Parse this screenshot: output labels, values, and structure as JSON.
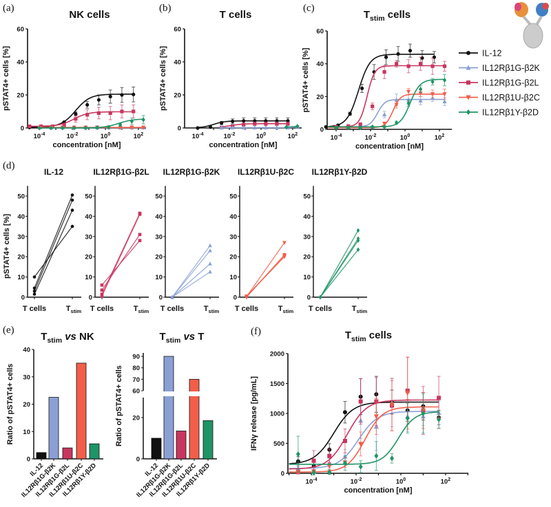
{
  "labels": {
    "a": "(a)",
    "b": "(b)",
    "c": "(c)",
    "d": "(d)",
    "e": "(e)",
    "f": "(f)"
  },
  "titles": {
    "a": "NK cells",
    "b": "T cells",
    "c": {
      "main": "T",
      "sub": "stim",
      "rest": " cells"
    },
    "e_left": {
      "main": "T",
      "sub": "stim",
      "mid": " vs",
      "rest": " NK"
    },
    "e_right": {
      "main": "T",
      "sub": "stim",
      "mid": " vs",
      "rest": " T"
    },
    "f": {
      "main": "T",
      "sub": "stim",
      "rest": " cells"
    }
  },
  "colors": {
    "IL-12": "#111111",
    "IL12Rβ1G-β2K": "#8aa0d4",
    "IL12Rβ1G-β2L": "#c8365f",
    "IL12Rβ1U-β2C": "#f25e4a",
    "IL12Rβ1Y-β2D": "#1f9466"
  },
  "markers": {
    "IL-12": "circle",
    "IL12Rβ1G-β2K": "triangle-up",
    "IL12Rβ1G-β2L": "square",
    "IL12Rβ1U-β2C": "triangle-down",
    "IL12Rβ1Y-β2D": "diamond"
  },
  "legend": [
    "IL-12",
    "IL12Rβ1G-β2K",
    "IL12Rβ1G-β2L",
    "IL12Rβ1U-β2C",
    "IL12Rβ1Y-β2D"
  ],
  "chart_data": [
    {
      "id": "a",
      "type": "line",
      "title": "NK cells",
      "xlabel": "concentration [nM]",
      "ylabel": "pSTAT4+ cells [%]",
      "xscale": "log",
      "ylim": [
        0,
        60
      ],
      "yticks": [
        0,
        20,
        40,
        60
      ],
      "xticks": [
        0.0001,
        0.01,
        1,
        100
      ],
      "series": [
        {
          "name": "IL-12",
          "x": [
            2.56e-05,
            0.000128,
            0.00064,
            0.0032,
            0.016,
            0.08,
            0.4,
            2,
            10,
            50
          ],
          "y": [
            0.3,
            0.5,
            1,
            3.5,
            8.5,
            14,
            17,
            19,
            20,
            20.3
          ],
          "err": [
            0.3,
            0.3,
            0.5,
            0.6,
            1.2,
            2,
            3,
            4,
            4.5,
            4.5
          ],
          "fit": {
            "bottom": 0.5,
            "top": 20.5,
            "log_ec50": -1.8,
            "hill": 1
          }
        },
        {
          "name": "IL12Rβ1G-β2L",
          "x": [
            2.56e-05,
            0.000128,
            0.00064,
            0.0032,
            0.016,
            0.08,
            0.4,
            2,
            10,
            50
          ],
          "y": [
            1,
            1,
            1,
            1.5,
            5.5,
            8,
            9,
            9,
            10,
            10
          ],
          "err": [
            0.5,
            0.5,
            0.5,
            1,
            2,
            3,
            3.5,
            4,
            4,
            4
          ],
          "fit": {
            "bottom": 1,
            "top": 9.8,
            "log_ec50": -1.9,
            "hill": 1
          }
        },
        {
          "name": "IL12Rβ1G-β2K",
          "x": [
            0.0001024,
            0.000512,
            0.00256,
            0.0128,
            0.064,
            0.32,
            1.6,
            8,
            40,
            200
          ],
          "y": [
            0.2,
            0.2,
            0.2,
            0.2,
            0.2,
            0.2,
            0.2,
            0.2,
            0.2,
            0.2
          ],
          "err": [
            0.3,
            0.3,
            0.3,
            0.3,
            0.3,
            0.3,
            0.3,
            0.3,
            0.3,
            0.3
          ],
          "fit": {
            "bottom": 0.2,
            "top": 0.2,
            "log_ec50": 0,
            "hill": 1
          }
        },
        {
          "name": "IL12Rβ1U-β2C",
          "x": [
            0.0001024,
            0.000512,
            0.00256,
            0.0128,
            0.064,
            0.32,
            1.6,
            8,
            40,
            200
          ],
          "y": [
            0.3,
            0.3,
            0.3,
            0.3,
            0.3,
            0.3,
            0.3,
            0.3,
            0.3,
            0.3
          ],
          "err": [
            0.3,
            0.3,
            0.3,
            0.3,
            0.3,
            0.3,
            0.3,
            0.3,
            0.3,
            0.3
          ],
          "fit": {
            "bottom": 0.3,
            "top": 0.3,
            "log_ec50": 0,
            "hill": 1
          }
        },
        {
          "name": "IL12Rβ1Y-β2D",
          "x": [
            0.0001024,
            0.000512,
            0.00256,
            0.0128,
            0.064,
            0.32,
            1.6,
            8,
            40,
            200
          ],
          "y": [
            0,
            0,
            0,
            0,
            0,
            0.2,
            0.5,
            2,
            4,
            5
          ],
          "err": [
            0.2,
            0.2,
            0.2,
            0.2,
            0.2,
            0.3,
            0.5,
            1,
            2,
            2.5
          ],
          "fit": {
            "bottom": 0,
            "top": 5.5,
            "log_ec50": 0.8,
            "hill": 1
          }
        }
      ]
    },
    {
      "id": "b",
      "type": "line",
      "title": "T cells",
      "xlabel": "concentration [nM]",
      "ylabel": "pSTAT4+ cells [%]",
      "xscale": "log",
      "ylim": [
        0,
        60
      ],
      "yticks": [
        0,
        20,
        40,
        60
      ],
      "xticks": [
        0.0001,
        0.01,
        1,
        100
      ],
      "series": [
        {
          "name": "IL-12",
          "x": [
            0.0001,
            0.00064,
            0.0032,
            0.016,
            0.08,
            0.4,
            2,
            10,
            50
          ],
          "y": [
            0,
            0.5,
            3,
            4,
            4.3,
            4.3,
            4.3,
            4.3,
            4.3
          ],
          "err": [
            0.2,
            0.3,
            1,
            1.5,
            1.8,
            1.8,
            1.8,
            1.8,
            1.8
          ],
          "fit": {
            "bottom": 0,
            "top": 4.3,
            "log_ec50": -3,
            "hill": 1.2
          }
        },
        {
          "name": "IL12Rβ1G-β2L",
          "x": [
            0.0032,
            0.016,
            0.08,
            0.4,
            2,
            10,
            50
          ],
          "y": [
            0.2,
            1,
            2,
            2.5,
            2.5,
            2.5,
            2.5
          ],
          "err": [
            0.3,
            0.8,
            1,
            1,
            1,
            1,
            1
          ],
          "fit": {
            "bottom": 0,
            "top": 2.6,
            "log_ec50": -2,
            "hill": 1
          }
        },
        {
          "name": "IL12Rβ1G-β2K",
          "x": [
            0.0032,
            0.016,
            0.08,
            0.4,
            2,
            10,
            50,
            200
          ],
          "y": [
            0.2,
            0.2,
            0.2,
            0.2,
            0.2,
            0.2,
            0.2,
            0.5
          ],
          "err": [
            0.2,
            0.2,
            0.2,
            0.2,
            0.2,
            0.2,
            0.2,
            0.3
          ],
          "fit": null
        },
        {
          "name": "IL12Rβ1Y-β2D",
          "x": [
            40,
            200
          ],
          "y": [
            0.5,
            1
          ],
          "err": [
            0.3,
            0.4
          ],
          "fit": null
        }
      ]
    },
    {
      "id": "c",
      "type": "line",
      "title": "Tstim cells",
      "xlabel": "concentration [nM]",
      "ylabel": "pSTAT4+ cells [%]",
      "xscale": "log",
      "ylim": [
        0,
        60
      ],
      "yticks": [
        0,
        20,
        40,
        60
      ],
      "xticks": [
        0.0001,
        0.01,
        1,
        100
      ],
      "series": [
        {
          "name": "IL-12",
          "x": [
            2.56e-05,
            0.000128,
            0.00064,
            0.0032,
            0.016,
            0.08,
            0.4,
            2,
            10,
            50
          ],
          "y": [
            1.5,
            2.5,
            9.5,
            25,
            35,
            44,
            46,
            48,
            43.5,
            44
          ],
          "err": [
            0.5,
            0.5,
            1,
            2.5,
            4.5,
            4.5,
            4.5,
            4,
            4.5,
            3.5
          ],
          "fit": {
            "bottom": 1.5,
            "top": 45.8,
            "log_ec50": -2.7,
            "hill": 1.3
          }
        },
        {
          "name": "IL12Rβ1G-β2K",
          "x": [
            0.0001024,
            0.000512,
            0.00256,
            0.0128,
            0.064,
            0.32,
            1.6,
            8,
            40,
            200
          ],
          "y": [
            1.5,
            1.5,
            1.5,
            1.5,
            9,
            18,
            18,
            17.5,
            19,
            17
          ],
          "err": [
            0.5,
            0.5,
            0.5,
            0.5,
            2,
            3.5,
            3,
            2.5,
            2,
            2.5
          ],
          "fit": {
            "bottom": 1.5,
            "top": 18.2,
            "log_ec50": -1.6,
            "hill": 2
          }
        },
        {
          "name": "IL12Rβ1G-β2L",
          "x": [
            0.0001024,
            0.000512,
            0.00256,
            0.0128,
            0.064,
            0.32,
            1.6,
            8,
            40,
            200
          ],
          "y": [
            1.5,
            2,
            3,
            14,
            35,
            40,
            38.5,
            40,
            38.5,
            38.5
          ],
          "err": [
            0.5,
            0.5,
            1,
            2,
            4,
            2,
            4,
            4,
            5,
            3
          ],
          "fit": {
            "bottom": 1.5,
            "top": 38.8,
            "log_ec50": -2.2,
            "hill": 2
          }
        },
        {
          "name": "IL12Rβ1U-β2C",
          "x": [
            0.064,
            0.32,
            1.6,
            8,
            40,
            200
          ],
          "y": [
            3.5,
            15,
            23,
            22,
            21.5,
            21.5
          ],
          "err": [
            1,
            2,
            2,
            2,
            2.5,
            3
          ],
          "fit": {
            "bottom": 1,
            "top": 21.5,
            "log_ec50": -0.7,
            "hill": 2
          }
        },
        {
          "name": "IL12Rβ1Y-β2D",
          "x": [
            0.0001024,
            0.000512,
            0.00256,
            0.0128,
            0.064,
            0.32,
            1.6,
            8,
            40,
            200
          ],
          "y": [
            1,
            1,
            1,
            1.5,
            1.5,
            4,
            16,
            24.5,
            29,
            30
          ],
          "err": [
            0.3,
            0.3,
            0.3,
            0.5,
            0.5,
            1,
            2,
            2,
            2,
            3.5
          ],
          "fit": {
            "bottom": 1.5,
            "top": 30.5,
            "log_ec50": 0.3,
            "hill": 1.5
          }
        }
      ]
    },
    {
      "id": "d",
      "type": "line",
      "ylabel": "pSTAT4+ cells [%]",
      "ylim": [
        0,
        55
      ],
      "yticks": [
        0,
        10,
        20,
        30,
        40,
        50
      ],
      "categories": [
        {
          "main": "T cells"
        },
        {
          "main": "T",
          "sub": "stim"
        }
      ],
      "panels": [
        {
          "name": "IL-12",
          "t_cells": [
            10,
            4.5,
            3,
            1.5
          ],
          "t_stim": [
            35,
            50.5,
            48,
            43
          ]
        },
        {
          "name": "IL12Rβ1G-β2L",
          "t_cells": [
            6,
            3.5,
            1.5,
            0.5
          ],
          "t_stim": [
            28,
            31,
            41.5,
            41
          ]
        },
        {
          "name": "IL12Rβ1G-β2K",
          "t_cells": [
            0,
            0,
            0,
            0
          ],
          "t_stim": [
            12.5,
            16.5,
            23,
            25.5
          ]
        },
        {
          "name": "IL12Rβ1U-β2C",
          "t_cells": [
            0.5,
            0.5,
            0,
            0.3
          ],
          "t_stim": [
            20,
            20.5,
            21,
            27
          ]
        },
        {
          "name": "IL12Rβ1Y-β2D",
          "t_cells": [
            0,
            0,
            0,
            0
          ],
          "t_stim": [
            23.5,
            28,
            29,
            33
          ]
        }
      ]
    },
    {
      "id": "e_left",
      "type": "bar",
      "title": "Tstim vs NK",
      "ylabel": "Ratio of pSTAT4+ cells",
      "ylim": [
        0,
        40
      ],
      "yticks": [
        0,
        10,
        20,
        30,
        40
      ],
      "categories": [
        "IL-12",
        "IL12Rβ1G-β2K",
        "IL12Rβ1G-β2L",
        "IL12Rβ1U-β2C",
        "IL12Rβ1Y-β2D"
      ],
      "values": [
        2.3,
        22.5,
        4,
        35,
        5.5
      ]
    },
    {
      "id": "e_right",
      "type": "bar",
      "title": "Tstim vs T",
      "ylabel": "Ratio of pSTAT4+ cells",
      "axis_break": [
        30,
        60
      ],
      "ylim": [
        0,
        93
      ],
      "yticks": [
        0,
        20,
        60,
        70,
        80,
        90
      ],
      "categories": [
        "IL-12",
        "IL12Rβ1G-β2K",
        "IL12Rβ1G-β2L",
        "IL12Rβ1U-β2C",
        "IL12Rβ1Y-β2D"
      ],
      "values": [
        10,
        90,
        13.5,
        70,
        18.5
      ]
    },
    {
      "id": "f",
      "type": "line",
      "title": "Tstim cells",
      "xlabel": "concentration [nM]",
      "ylabel": "IFNγ release [pg/mL]",
      "xscale": "log",
      "ylim": [
        0,
        2000
      ],
      "yticks": [
        0,
        500,
        1000,
        1500,
        2000
      ],
      "xticks": [
        0.0001,
        0.01,
        1,
        100
      ],
      "series": [
        {
          "name": "IL-12",
          "x": [
            2.56e-05,
            0.000128,
            0.00064,
            0.0032,
            0.016,
            0.08,
            0.4,
            2,
            10,
            50
          ],
          "y": [
            200,
            120,
            395,
            1020,
            1280,
            1320,
            1190,
            1050,
            1120,
            930
          ],
          "err": [
            80,
            60,
            100,
            180,
            300,
            300,
            200,
            180,
            230,
            120
          ],
          "fit": {
            "bottom": 150,
            "top": 1190,
            "log_ec50": -3.0,
            "hill": 1
          }
        },
        {
          "name": "IL12Rβ1G-β2K",
          "x": [
            2.56e-05,
            0.000128,
            0.00064,
            0.0032,
            0.016,
            0.08,
            0.4,
            2,
            10,
            50
          ],
          "y": [
            80,
            30,
            170,
            280,
            880,
            780,
            1180,
            950,
            950,
            1010
          ],
          "err": [
            40,
            30,
            80,
            120,
            300,
            400,
            400,
            250,
            150,
            200
          ],
          "fit": {
            "bottom": 80,
            "top": 1035,
            "log_ec50": -1.9,
            "hill": 1
          }
        },
        {
          "name": "IL12Rβ1G-β2L",
          "x": [
            2.56e-05,
            0.000128,
            0.00064,
            0.0032,
            0.016,
            0.08,
            0.4,
            2,
            10,
            50
          ],
          "y": [
            20,
            210,
            290,
            540,
            1200,
            1200,
            1130,
            1380,
            1050,
            1260
          ],
          "err": [
            30,
            170,
            120,
            200,
            380,
            400,
            420,
            560,
            400,
            360
          ],
          "fit": {
            "bottom": 70,
            "top": 1225,
            "log_ec50": -2.4,
            "hill": 1
          }
        },
        {
          "name": "IL12Rβ1U-β2C",
          "x": [
            2.56e-05,
            0.000128,
            0.00064,
            0.0032,
            0.016,
            0.08,
            0.4,
            2,
            10,
            50
          ],
          "y": [
            20,
            30,
            120,
            180,
            490,
            950,
            1150,
            1340,
            1050,
            900
          ],
          "err": [
            20,
            30,
            60,
            80,
            200,
            300,
            440,
            600,
            300,
            150
          ],
          "fit": {
            "bottom": 20,
            "top": 1110,
            "log_ec50": -1.6,
            "hill": 1.1
          }
        },
        {
          "name": "IL12Rβ1Y-β2D",
          "x": [
            2.56e-05,
            0.000128,
            0.00064,
            0.0032,
            0.016,
            0.08,
            0.4,
            2,
            10,
            50
          ],
          "y": [
            320,
            10,
            20,
            170,
            110,
            290,
            250,
            920,
            1000,
            900
          ],
          "err": [
            300,
            40,
            40,
            120,
            100,
            240,
            80,
            250,
            330,
            150
          ],
          "fit": {
            "bottom": 150,
            "top": 1030,
            "log_ec50": -0.1,
            "hill": 1.2
          }
        }
      ]
    }
  ]
}
